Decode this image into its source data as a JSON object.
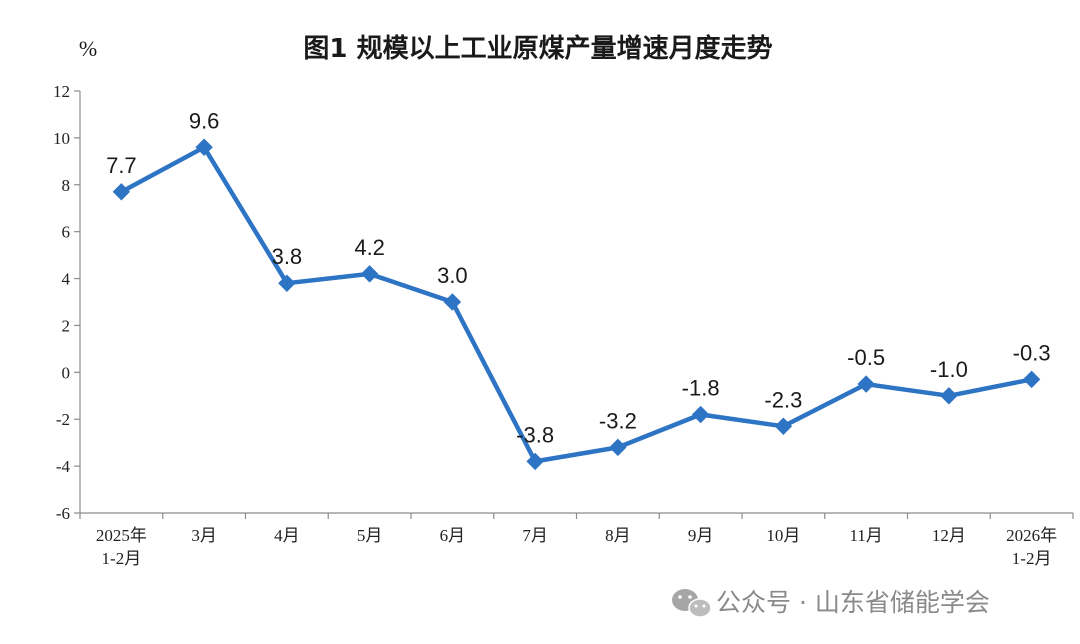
{
  "chart_data": {
    "type": "line",
    "title": "图1  规模以上工业原煤产量增速月度走势",
    "unit": "%",
    "categories": [
      [
        "2025年",
        "1-2月"
      ],
      [
        "3月"
      ],
      [
        "4月"
      ],
      [
        "5月"
      ],
      [
        "6月"
      ],
      [
        "7月"
      ],
      [
        "8月"
      ],
      [
        "9月"
      ],
      [
        "10月"
      ],
      [
        "11月"
      ],
      [
        "12月"
      ],
      [
        "2026年",
        "1-2月"
      ]
    ],
    "values": [
      7.7,
      9.6,
      3.8,
      4.2,
      3.0,
      -3.8,
      -3.2,
      -1.8,
      -2.3,
      -0.5,
      -1.0,
      -0.3
    ],
    "value_labels": [
      "7.7",
      "9.6",
      "3.8",
      "4.2",
      "3.0",
      "-3.8",
      "-3.2",
      "-1.8",
      "-2.3",
      "-0.5",
      "-1.0",
      "-0.3"
    ],
    "ylim": [
      -6,
      12
    ],
    "yticks": [
      12,
      10,
      8,
      6,
      4,
      2,
      0,
      -2,
      -4,
      -6
    ],
    "ytick_labels": [
      "12",
      "10",
      "8",
      "6",
      "4",
      "2",
      "0",
      "-2",
      "-4",
      "-6"
    ],
    "xlabel": "",
    "ylabel": "",
    "grid": false,
    "marker": "diamond",
    "colors": {
      "line": "#2e74c4",
      "axis": "#8c8c8c"
    }
  },
  "watermark": {
    "text": "公众号 · 山东省储能学会",
    "icon": "wechat-icon"
  }
}
